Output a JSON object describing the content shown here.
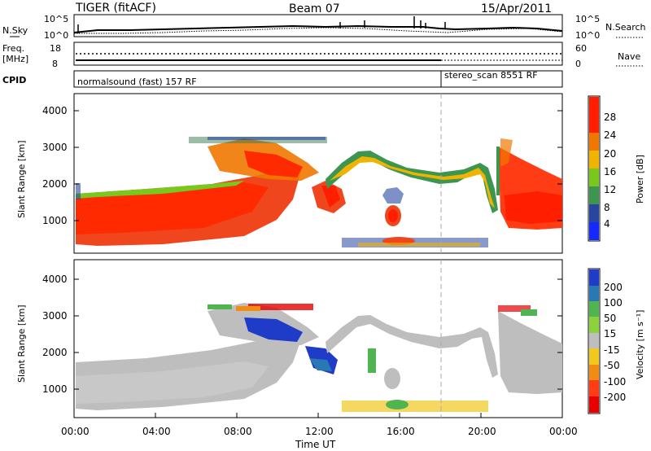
{
  "header": {
    "radar": "TIGER (fitACF)",
    "beam": "Beam 07",
    "date": "15/Apr/2011"
  },
  "nsky_panel": {
    "left_label": "N.Sky",
    "right_label": "N.Search",
    "left_ticks": [
      "10^5",
      "10^0"
    ],
    "right_ticks": [
      "10^5",
      "10^0"
    ]
  },
  "freq_panel": {
    "left_label_1": "Freq.",
    "left_label_2": "[MHz]",
    "right_label": "Nave",
    "left_ticks": [
      "18",
      "8"
    ],
    "right_ticks": [
      "60",
      "0"
    ]
  },
  "cpid": {
    "label": "CPID",
    "program_1": "normalsound (fast) 157 RF",
    "program_2": "stereo_scan 8551 RF"
  },
  "chart_data": [
    {
      "type": "heatmap",
      "title": "",
      "ylabel": "Slant Range [km]",
      "y_ticks": [
        "1000",
        "2000",
        "3000",
        "4000"
      ],
      "ylim": [
        200,
        4600
      ],
      "colorbar": {
        "label": "Power [dB]",
        "ticks": [
          "4",
          "8",
          "12",
          "16",
          "20",
          "24",
          "28"
        ],
        "colors": [
          "#1428ff",
          "#2846a0",
          "#3c9650",
          "#78c81e",
          "#f0b400",
          "#f07800",
          "#ff1e00"
        ]
      }
    },
    {
      "type": "heatmap",
      "title": "",
      "ylabel": "Slant Range [km]",
      "y_ticks": [
        "1000",
        "2000",
        "3000",
        "4000"
      ],
      "ylim": [
        200,
        4600
      ],
      "xlabel": "Time UT",
      "x_ticks": [
        "00:00",
        "04:00",
        "08:00",
        "12:00",
        "16:00",
        "20:00",
        "00:00"
      ],
      "colorbar": {
        "label": "Velocity [m s⁻¹]",
        "ticks": [
          "200",
          "100",
          "50",
          "15",
          "-15",
          "-50",
          "-100",
          "-200"
        ],
        "colors": [
          "#1e3cc8",
          "#2878b4",
          "#50b450",
          "#8cd23c",
          "#bebebe",
          "#f0c81e",
          "#f08c14",
          "#ff3c14",
          "#e60000"
        ]
      }
    }
  ]
}
